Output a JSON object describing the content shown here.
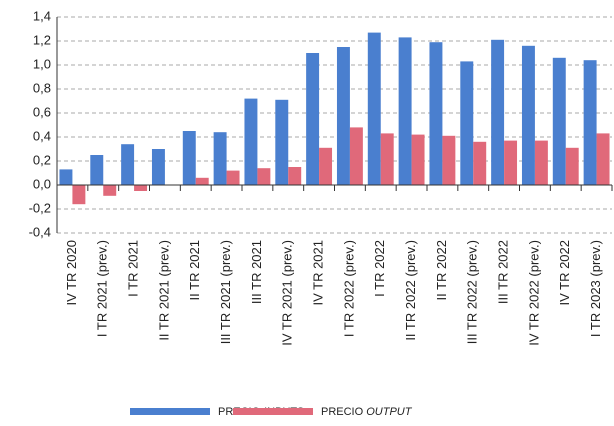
{
  "chart_data": {
    "type": "bar",
    "categories": [
      "IV TR 2020",
      "I TR 2021 (prev.)",
      "I TR 2021",
      "II TR 2021 (prev.)",
      "II TR 2021",
      "III TR 2021 (prev.)",
      "III TR 2021",
      "IV TR 2021 (prev.)",
      "IV TR 2021",
      "I TR 2022 (prev.)",
      "I TR 2022",
      "II TR 2022 (prev.)",
      "II TR 2022",
      "III TR 2022 (prev.)",
      "III TR 2022",
      "IV TR 2022 (prev.)",
      "IV TR 2022",
      "I TR 2023 (prev.)"
    ],
    "series": [
      {
        "name": "PRECIO INPUTS",
        "color": "#4a7fcf",
        "values": [
          0.13,
          0.25,
          0.34,
          0.3,
          0.45,
          0.44,
          0.72,
          0.71,
          1.1,
          1.15,
          1.27,
          1.23,
          1.19,
          1.03,
          1.21,
          1.16,
          1.06,
          1.04
        ]
      },
      {
        "name": "PRECIO OUTPUT",
        "color": "#e0697a",
        "values": [
          -0.16,
          -0.09,
          -0.05,
          0,
          0.06,
          0.12,
          0.14,
          0.15,
          0.31,
          0.48,
          0.43,
          0.42,
          0.41,
          0.36,
          0.37,
          0.37,
          0.31,
          0.43
        ]
      }
    ],
    "ylim": [
      -0.4,
      1.4
    ],
    "yticks": [
      {
        "value": -0.4,
        "label": "-0,4"
      },
      {
        "value": -0.2,
        "label": "-0,2"
      },
      {
        "value": 0,
        "label": "0,0"
      },
      {
        "value": 0.2,
        "label": "0,2"
      },
      {
        "value": 0.4,
        "label": "0,4"
      },
      {
        "value": 0.6,
        "label": "0,6"
      },
      {
        "value": 0.8,
        "label": "0,8"
      },
      {
        "value": 1.0,
        "label": "1,0"
      },
      {
        "value": 1.2,
        "label": "1,2"
      },
      {
        "value": 1.4,
        "label": "1,4"
      }
    ],
    "grid": true
  }
}
